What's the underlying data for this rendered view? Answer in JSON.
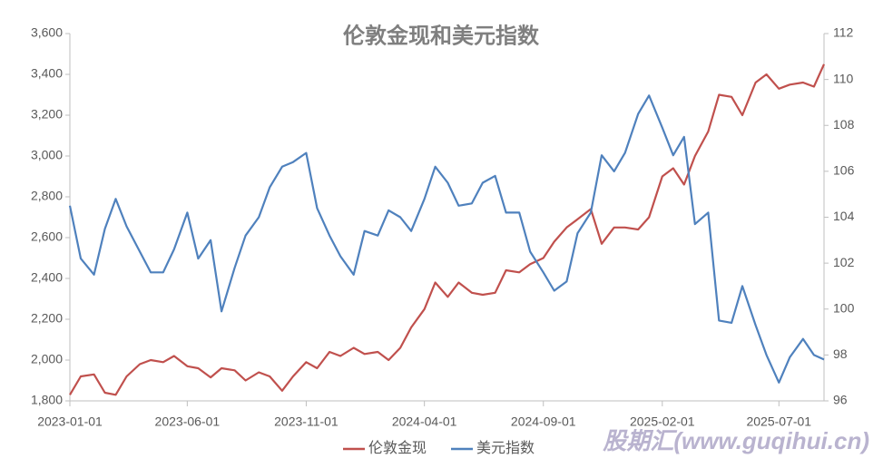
{
  "chart_data": {
    "type": "line",
    "title": "伦敦金现和美元指数",
    "watermark": "股期汇(www.guqihui.cn)",
    "x": [
      "2023-01-01",
      "2023-01-15",
      "2023-02-01",
      "2023-02-15",
      "2023-03-01",
      "2023-03-15",
      "2023-04-01",
      "2023-04-15",
      "2023-05-01",
      "2023-05-15",
      "2023-06-01",
      "2023-06-15",
      "2023-07-01",
      "2023-07-15",
      "2023-08-01",
      "2023-08-15",
      "2023-09-01",
      "2023-09-15",
      "2023-10-01",
      "2023-10-15",
      "2023-11-01",
      "2023-11-15",
      "2023-12-01",
      "2023-12-15",
      "2024-01-01",
      "2024-01-15",
      "2024-02-01",
      "2024-02-15",
      "2024-03-01",
      "2024-03-15",
      "2024-04-01",
      "2024-04-15",
      "2024-05-01",
      "2024-05-15",
      "2024-06-01",
      "2024-06-15",
      "2024-07-01",
      "2024-07-15",
      "2024-08-01",
      "2024-08-15",
      "2024-09-01",
      "2024-09-15",
      "2024-10-01",
      "2024-10-15",
      "2024-11-01",
      "2024-11-15",
      "2024-12-01",
      "2024-12-15",
      "2025-01-01",
      "2025-01-15",
      "2025-02-01",
      "2025-02-15",
      "2025-03-01",
      "2025-03-15",
      "2025-04-01",
      "2025-04-15",
      "2025-05-01",
      "2025-05-15",
      "2025-06-01",
      "2025-06-15",
      "2025-07-01",
      "2025-07-15",
      "2025-08-01",
      "2025-08-15",
      "2025-08-28"
    ],
    "xlim": [
      "2023-01-01",
      "2025-08-28"
    ],
    "xticks": [
      "2023-01-01",
      "2023-06-01",
      "2023-11-01",
      "2024-04-01",
      "2024-09-01",
      "2025-02-01",
      "2025-07-01"
    ],
    "ylim": [
      1800,
      3600
    ],
    "yticks": [
      {
        "value": 1800,
        "label": "1,800"
      },
      {
        "value": 2000,
        "label": "2,000"
      },
      {
        "value": 2200,
        "label": "2,200"
      },
      {
        "value": 2400,
        "label": "2,400"
      },
      {
        "value": 2600,
        "label": "2,600"
      },
      {
        "value": 2800,
        "label": "2,800"
      },
      {
        "value": 3000,
        "label": "3,000"
      },
      {
        "value": 3200,
        "label": "3,200"
      },
      {
        "value": 3400,
        "label": "3,400"
      },
      {
        "value": 3600,
        "label": "3,600"
      }
    ],
    "y2lim": [
      96,
      112
    ],
    "y2ticks": [
      96,
      98,
      100,
      102,
      104,
      106,
      108,
      110,
      112
    ],
    "series": [
      {
        "name": "伦敦金现",
        "color": "#c0504d",
        "values": [
          1830,
          1920,
          1930,
          1840,
          1830,
          1920,
          1980,
          2000,
          1990,
          2020,
          1970,
          1960,
          1915,
          1960,
          1950,
          1900,
          1940,
          1920,
          1850,
          1920,
          1990,
          1960,
          2040,
          2020,
          2060,
          2030,
          2040,
          2000,
          2060,
          2160,
          2250,
          2380,
          2310,
          2380,
          2330,
          2320,
          2330,
          2440,
          2430,
          2470,
          2500,
          2580,
          2650,
          2690,
          2740,
          2570,
          2650,
          2650,
          2640,
          2700,
          2900,
          2940,
          2860,
          3000,
          3120,
          3300,
          3290,
          3200,
          3360,
          3400,
          3330,
          3350,
          3360,
          3340,
          3450
        ]
      },
      {
        "name": "美元指数",
        "color": "#4f81bd",
        "axis": "y2",
        "values": [
          104.5,
          102.2,
          101.5,
          103.5,
          104.8,
          103.6,
          102.5,
          101.6,
          101.6,
          102.6,
          104.2,
          102.2,
          103.0,
          99.9,
          101.8,
          103.2,
          104.0,
          105.3,
          106.2,
          106.4,
          106.8,
          104.4,
          103.2,
          102.3,
          101.5,
          103.4,
          103.2,
          104.3,
          104.0,
          103.4,
          104.8,
          106.2,
          105.5,
          104.5,
          104.6,
          105.5,
          105.8,
          104.2,
          104.2,
          102.5,
          101.6,
          100.8,
          101.2,
          103.3,
          104.2,
          106.7,
          106.0,
          106.8,
          108.5,
          109.3,
          107.9,
          106.7,
          107.5,
          103.7,
          104.2,
          99.5,
          99.4,
          101.0,
          99.3,
          98.0,
          96.8,
          97.9,
          98.7,
          98.0,
          97.8
        ]
      }
    ]
  }
}
